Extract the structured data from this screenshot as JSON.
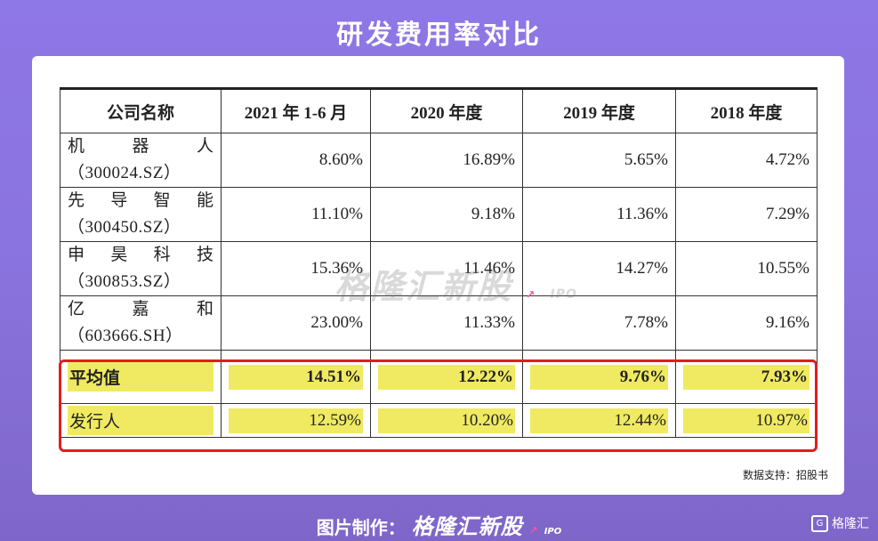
{
  "title": "研发费用率对比",
  "table": {
    "headers": [
      "公司名称",
      "2021 年 1-6 月",
      "2020 年度",
      "2019 年度",
      "2018 年度"
    ],
    "rows": [
      {
        "name": "机器人",
        "code": "（300024.SZ）",
        "values": [
          "8.60%",
          "16.89%",
          "5.65%",
          "4.72%"
        ]
      },
      {
        "name": "先导智能",
        "code": "（300450.SZ）",
        "values": [
          "11.10%",
          "9.18%",
          "11.36%",
          "7.29%"
        ]
      },
      {
        "name": "申昊科技",
        "code": "（300853.SZ）",
        "values": [
          "15.36%",
          "11.46%",
          "14.27%",
          "10.55%"
        ]
      },
      {
        "name": "亿嘉和",
        "code": "（603666.SH）",
        "values": [
          "23.00%",
          "11.33%",
          "7.78%",
          "9.16%"
        ]
      }
    ],
    "average": {
      "label": "平均值",
      "values": [
        "14.51%",
        "12.22%",
        "9.76%",
        "7.93%"
      ]
    },
    "issuer": {
      "label": "发行人",
      "values": [
        "12.59%",
        "10.20%",
        "12.44%",
        "10.97%"
      ]
    }
  },
  "watermark": {
    "text": "格隆汇新股",
    "sub": "IPO"
  },
  "source": "数据支持：招股书",
  "footer": {
    "prefix": "图片制作：",
    "brand": "格隆汇新股",
    "ipo": "IPO"
  },
  "logo": {
    "text": "格隆汇",
    "mark": "G"
  },
  "colors": {
    "highlight": "#f0ea62",
    "box_border": "#e21d1d",
    "background": "#8a74df"
  }
}
